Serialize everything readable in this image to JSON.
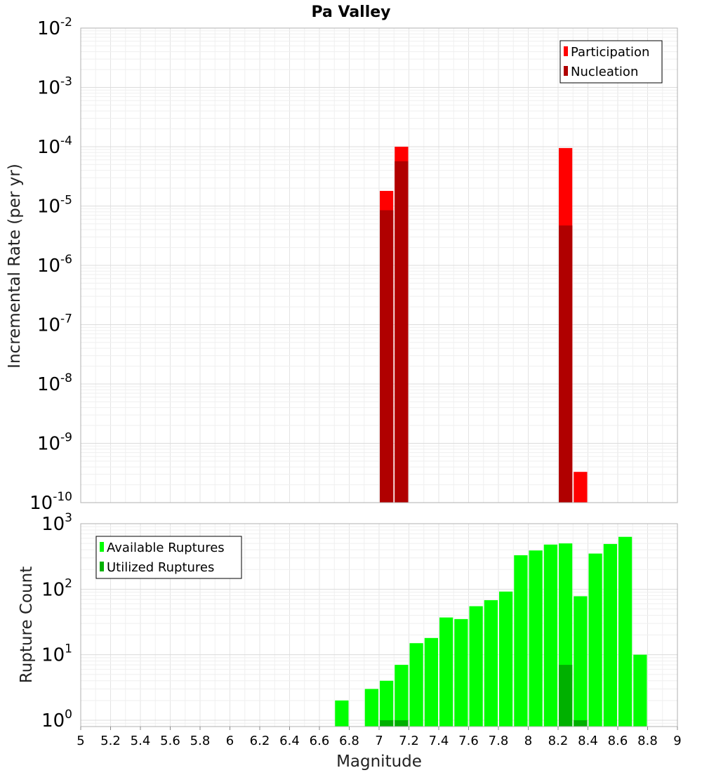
{
  "chart_data": [
    {
      "type": "bar",
      "title": "Pa Valley",
      "ylabel": "Incremental Rate (per yr)",
      "xlabel": "",
      "yscale": "log",
      "ylim": [
        1e-10,
        0.01
      ],
      "xlim": [
        5,
        9
      ],
      "ytick_exponents": [
        "-10",
        "-9",
        "-8",
        "-7",
        "-6",
        "-5",
        "-4",
        "-3",
        "-2"
      ],
      "legend": "top-right",
      "grid": true,
      "series": [
        {
          "name": "Participation",
          "color": "#ff0000",
          "points": [
            {
              "x": 7.05,
              "y": 1.8e-05
            },
            {
              "x": 7.15,
              "y": 0.0001
            },
            {
              "x": 8.25,
              "y": 9.5e-05
            },
            {
              "x": 8.35,
              "y": 3.3e-10
            }
          ]
        },
        {
          "name": "Nucleation",
          "color": "#b00000",
          "points": [
            {
              "x": 7.05,
              "y": 8.5e-06
            },
            {
              "x": 7.15,
              "y": 5.7e-05
            },
            {
              "x": 8.25,
              "y": 4.7e-06
            }
          ]
        }
      ]
    },
    {
      "type": "bar",
      "title": "",
      "ylabel": "Rupture Count",
      "xlabel": "Magnitude",
      "yscale": "log",
      "ylim": [
        0.8,
        1000
      ],
      "xlim": [
        5,
        9
      ],
      "ytick_exponents": [
        "0",
        "1",
        "2",
        "3"
      ],
      "xticks": [
        "5",
        "5.2",
        "5.4",
        "5.6",
        "5.8",
        "6",
        "6.2",
        "6.4",
        "6.6",
        "6.8",
        "7",
        "7.2",
        "7.4",
        "7.6",
        "7.8",
        "8",
        "8.2",
        "8.4",
        "8.6",
        "8.8",
        "9"
      ],
      "legend": "top-left",
      "grid": true,
      "series": [
        {
          "name": "Available Ruptures",
          "color": "#00ff00",
          "points": [
            {
              "x": 6.75,
              "y": 2
            },
            {
              "x": 6.95,
              "y": 3
            },
            {
              "x": 7.05,
              "y": 4
            },
            {
              "x": 7.15,
              "y": 7
            },
            {
              "x": 7.25,
              "y": 15
            },
            {
              "x": 7.35,
              "y": 18
            },
            {
              "x": 7.45,
              "y": 37
            },
            {
              "x": 7.55,
              "y": 35
            },
            {
              "x": 7.65,
              "y": 55
            },
            {
              "x": 7.75,
              "y": 68
            },
            {
              "x": 7.85,
              "y": 92
            },
            {
              "x": 7.95,
              "y": 330
            },
            {
              "x": 8.05,
              "y": 390
            },
            {
              "x": 8.15,
              "y": 480
            },
            {
              "x": 8.25,
              "y": 500
            },
            {
              "x": 8.35,
              "y": 78
            },
            {
              "x": 8.45,
              "y": 350
            },
            {
              "x": 8.55,
              "y": 490
            },
            {
              "x": 8.65,
              "y": 630
            },
            {
              "x": 8.75,
              "y": 10
            }
          ]
        },
        {
          "name": "Utilized Ruptures",
          "color": "#00b000",
          "points": [
            {
              "x": 7.05,
              "y": 1
            },
            {
              "x": 7.15,
              "y": 1
            },
            {
              "x": 8.25,
              "y": 7
            },
            {
              "x": 8.35,
              "y": 1
            }
          ]
        }
      ]
    }
  ]
}
